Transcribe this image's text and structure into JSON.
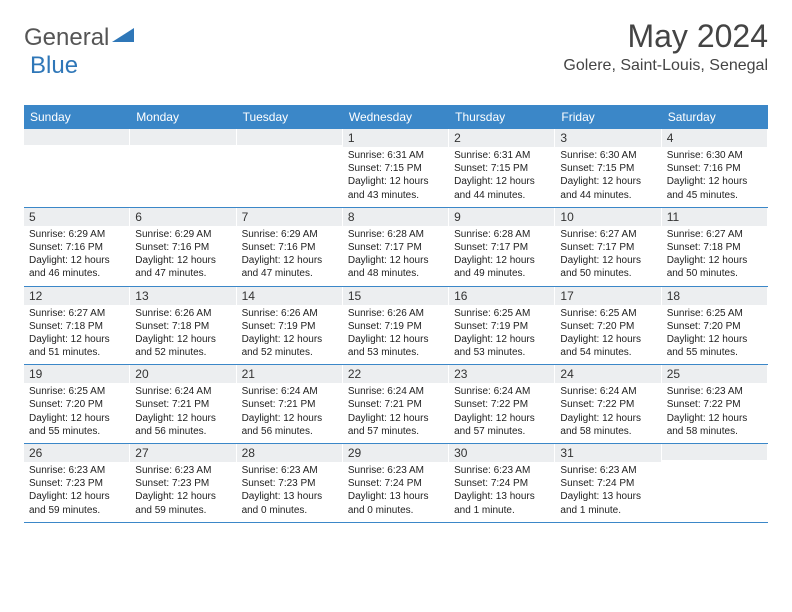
{
  "logo": {
    "text1": "General",
    "text2": "Blue"
  },
  "title": "May 2024",
  "location": "Golere, Saint-Louis, Senegal",
  "colors": {
    "header_bg": "#3b87c8",
    "header_text": "#ffffff",
    "daynum_bg": "#eceef0",
    "border": "#3b87c8",
    "logo_blue": "#2f77b8",
    "text": "#333333"
  },
  "day_headers": [
    "Sunday",
    "Monday",
    "Tuesday",
    "Wednesday",
    "Thursday",
    "Friday",
    "Saturday"
  ],
  "weeks": [
    [
      {
        "n": "",
        "sr": "",
        "ss": "",
        "dl": ""
      },
      {
        "n": "",
        "sr": "",
        "ss": "",
        "dl": ""
      },
      {
        "n": "",
        "sr": "",
        "ss": "",
        "dl": ""
      },
      {
        "n": "1",
        "sr": "6:31 AM",
        "ss": "7:15 PM",
        "dl": "12 hours and 43 minutes."
      },
      {
        "n": "2",
        "sr": "6:31 AM",
        "ss": "7:15 PM",
        "dl": "12 hours and 44 minutes."
      },
      {
        "n": "3",
        "sr": "6:30 AM",
        "ss": "7:15 PM",
        "dl": "12 hours and 44 minutes."
      },
      {
        "n": "4",
        "sr": "6:30 AM",
        "ss": "7:16 PM",
        "dl": "12 hours and 45 minutes."
      }
    ],
    [
      {
        "n": "5",
        "sr": "6:29 AM",
        "ss": "7:16 PM",
        "dl": "12 hours and 46 minutes."
      },
      {
        "n": "6",
        "sr": "6:29 AM",
        "ss": "7:16 PM",
        "dl": "12 hours and 47 minutes."
      },
      {
        "n": "7",
        "sr": "6:29 AM",
        "ss": "7:16 PM",
        "dl": "12 hours and 47 minutes."
      },
      {
        "n": "8",
        "sr": "6:28 AM",
        "ss": "7:17 PM",
        "dl": "12 hours and 48 minutes."
      },
      {
        "n": "9",
        "sr": "6:28 AM",
        "ss": "7:17 PM",
        "dl": "12 hours and 49 minutes."
      },
      {
        "n": "10",
        "sr": "6:27 AM",
        "ss": "7:17 PM",
        "dl": "12 hours and 50 minutes."
      },
      {
        "n": "11",
        "sr": "6:27 AM",
        "ss": "7:18 PM",
        "dl": "12 hours and 50 minutes."
      }
    ],
    [
      {
        "n": "12",
        "sr": "6:27 AM",
        "ss": "7:18 PM",
        "dl": "12 hours and 51 minutes."
      },
      {
        "n": "13",
        "sr": "6:26 AM",
        "ss": "7:18 PM",
        "dl": "12 hours and 52 minutes."
      },
      {
        "n": "14",
        "sr": "6:26 AM",
        "ss": "7:19 PM",
        "dl": "12 hours and 52 minutes."
      },
      {
        "n": "15",
        "sr": "6:26 AM",
        "ss": "7:19 PM",
        "dl": "12 hours and 53 minutes."
      },
      {
        "n": "16",
        "sr": "6:25 AM",
        "ss": "7:19 PM",
        "dl": "12 hours and 53 minutes."
      },
      {
        "n": "17",
        "sr": "6:25 AM",
        "ss": "7:20 PM",
        "dl": "12 hours and 54 minutes."
      },
      {
        "n": "18",
        "sr": "6:25 AM",
        "ss": "7:20 PM",
        "dl": "12 hours and 55 minutes."
      }
    ],
    [
      {
        "n": "19",
        "sr": "6:25 AM",
        "ss": "7:20 PM",
        "dl": "12 hours and 55 minutes."
      },
      {
        "n": "20",
        "sr": "6:24 AM",
        "ss": "7:21 PM",
        "dl": "12 hours and 56 minutes."
      },
      {
        "n": "21",
        "sr": "6:24 AM",
        "ss": "7:21 PM",
        "dl": "12 hours and 56 minutes."
      },
      {
        "n": "22",
        "sr": "6:24 AM",
        "ss": "7:21 PM",
        "dl": "12 hours and 57 minutes."
      },
      {
        "n": "23",
        "sr": "6:24 AM",
        "ss": "7:22 PM",
        "dl": "12 hours and 57 minutes."
      },
      {
        "n": "24",
        "sr": "6:24 AM",
        "ss": "7:22 PM",
        "dl": "12 hours and 58 minutes."
      },
      {
        "n": "25",
        "sr": "6:23 AM",
        "ss": "7:22 PM",
        "dl": "12 hours and 58 minutes."
      }
    ],
    [
      {
        "n": "26",
        "sr": "6:23 AM",
        "ss": "7:23 PM",
        "dl": "12 hours and 59 minutes."
      },
      {
        "n": "27",
        "sr": "6:23 AM",
        "ss": "7:23 PM",
        "dl": "12 hours and 59 minutes."
      },
      {
        "n": "28",
        "sr": "6:23 AM",
        "ss": "7:23 PM",
        "dl": "13 hours and 0 minutes."
      },
      {
        "n": "29",
        "sr": "6:23 AM",
        "ss": "7:24 PM",
        "dl": "13 hours and 0 minutes."
      },
      {
        "n": "30",
        "sr": "6:23 AM",
        "ss": "7:24 PM",
        "dl": "13 hours and 1 minute."
      },
      {
        "n": "31",
        "sr": "6:23 AM",
        "ss": "7:24 PM",
        "dl": "13 hours and 1 minute."
      },
      {
        "n": "",
        "sr": "",
        "ss": "",
        "dl": ""
      }
    ]
  ],
  "labels": {
    "sunrise": "Sunrise:",
    "sunset": "Sunset:",
    "daylight": "Daylight:"
  }
}
